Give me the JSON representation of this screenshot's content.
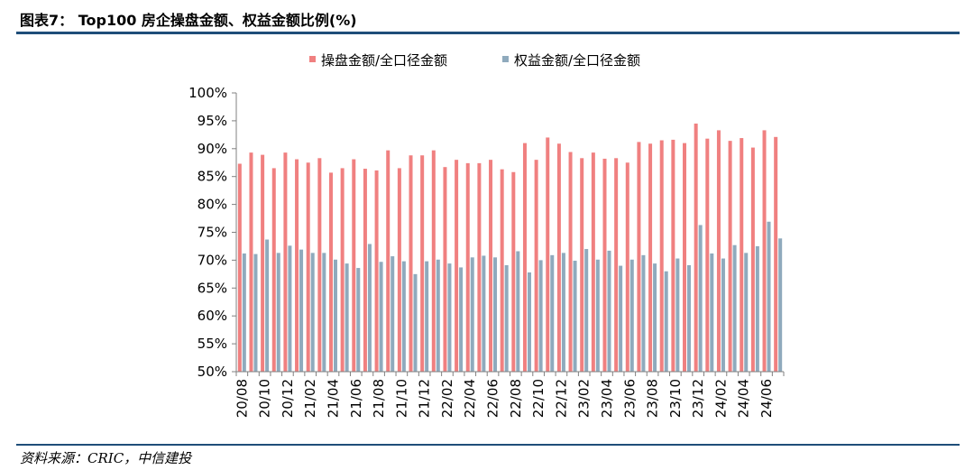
{
  "header": {
    "figure_title": "图表7：  Top100 房企操盘金额、权益金额比例(%)"
  },
  "footer": {
    "source": "资料来源：CRIC，中信建投"
  },
  "chart_data": {
    "type": "bar",
    "title": "",
    "xlabel": "",
    "ylabel": "",
    "ylim": [
      50,
      100
    ],
    "yticks": [
      "100%",
      "95%",
      "90%",
      "85%",
      "80%",
      "75%",
      "70%",
      "65%",
      "60%",
      "55%",
      "50%"
    ],
    "legend_position": "top-center",
    "grid": false,
    "colors": {
      "series1": "#f08080",
      "series2": "#8faabd",
      "axis": "#808080"
    },
    "categories": [
      "20/08",
      "20/09",
      "20/10",
      "20/11",
      "20/12",
      "21/01",
      "21/02",
      "21/03",
      "21/04",
      "21/05",
      "21/06",
      "21/07",
      "21/08",
      "21/09",
      "21/10",
      "21/11",
      "21/12",
      "22/01",
      "22/02",
      "22/03",
      "22/04",
      "22/05",
      "22/06",
      "22/07",
      "22/08",
      "22/09",
      "22/10",
      "22/11",
      "22/12",
      "23/01",
      "23/02",
      "23/03",
      "23/04",
      "23/05",
      "23/06",
      "23/07",
      "23/08",
      "23/09",
      "23/10",
      "23/11",
      "23/12",
      "24/01",
      "24/02",
      "24/03",
      "24/04",
      "24/05",
      "24/06",
      "24/07"
    ],
    "xtick_labels": [
      "20/08",
      "20/10",
      "20/12",
      "21/02",
      "21/04",
      "21/06",
      "21/08",
      "21/10",
      "21/12",
      "22/02",
      "22/04",
      "22/06",
      "22/08",
      "22/10",
      "22/12",
      "23/02",
      "23/04",
      "23/06",
      "23/08",
      "23/10",
      "23/12",
      "24/02",
      "24/04",
      "24/06"
    ],
    "series": [
      {
        "name": "操盘金额/全口径金额",
        "values": [
          87.3,
          89.3,
          88.9,
          86.5,
          89.3,
          88.1,
          87.5,
          88.3,
          85.7,
          86.5,
          88.1,
          86.4,
          86.1,
          89.7,
          86.5,
          88.8,
          88.8,
          89.7,
          86.7,
          88.0,
          87.4,
          87.4,
          88.0,
          86.3,
          85.8,
          91.0,
          88.0,
          92.0,
          90.9,
          89.4,
          88.3,
          89.3,
          88.2,
          88.3,
          87.5,
          91.2,
          90.9,
          91.5,
          91.6,
          91.0,
          94.5,
          91.8,
          93.3,
          91.4,
          91.9,
          90.2,
          93.3,
          92.1
        ]
      },
      {
        "name": "权益金额/全口径金额",
        "values": [
          71.2,
          71.1,
          73.7,
          71.3,
          72.6,
          71.9,
          71.3,
          71.3,
          70.1,
          69.4,
          68.6,
          72.9,
          69.7,
          70.7,
          69.8,
          67.5,
          69.8,
          70.1,
          69.4,
          68.7,
          70.5,
          70.8,
          70.5,
          69.1,
          71.6,
          67.8,
          70.0,
          70.9,
          71.3,
          69.9,
          72.0,
          70.1,
          71.7,
          69.0,
          70.1,
          70.9,
          69.4,
          68.0,
          70.3,
          69.1,
          76.3,
          71.2,
          70.3,
          72.7,
          71.3,
          72.5,
          76.9,
          73.9
        ]
      }
    ]
  }
}
